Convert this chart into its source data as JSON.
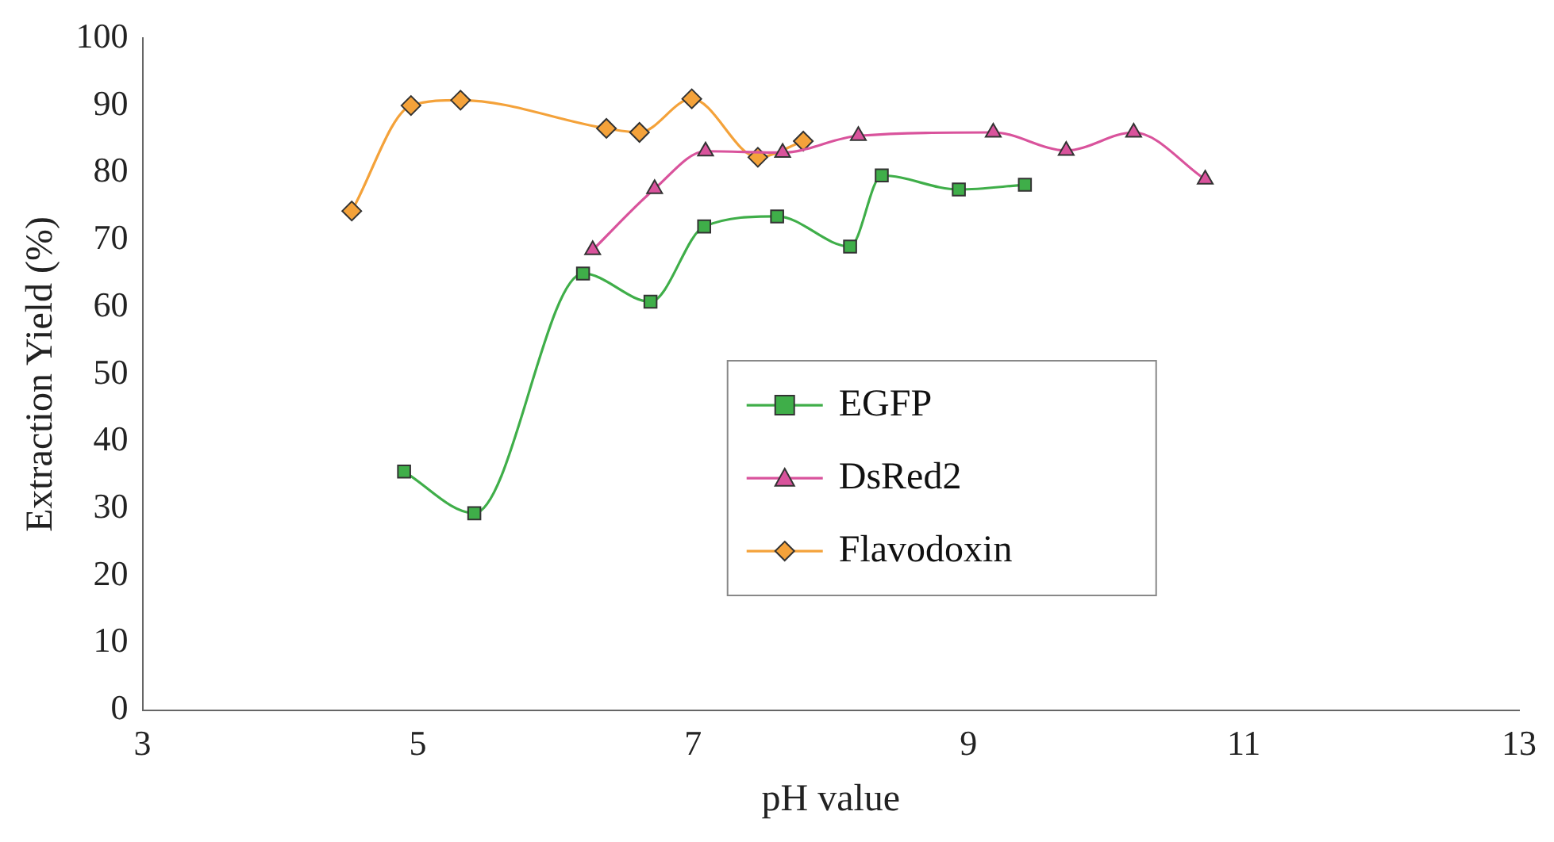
{
  "chart_data": {
    "type": "line",
    "xlabel": "pH value",
    "ylabel": "Extraction Yield (%)",
    "xlim": [
      3,
      13
    ],
    "xticks": [
      3,
      5,
      7,
      9,
      11,
      13
    ],
    "ylim": [
      0,
      100
    ],
    "yticks": [
      0,
      10,
      20,
      30,
      40,
      50,
      60,
      70,
      80,
      90,
      100
    ],
    "grid": false,
    "legend": "right",
    "series": [
      {
        "name": "EGFP",
        "color": "#3fae49",
        "marker": "square",
        "x": [
          4.9,
          5.41,
          6.2,
          6.69,
          7.08,
          7.61,
          8.14,
          8.37,
          8.93,
          9.41
        ],
        "values": [
          35.5,
          29.3,
          65,
          60.8,
          72,
          73.5,
          69,
          79.6,
          77.5,
          78.2
        ]
      },
      {
        "name": "DsRed2",
        "color": "#d9539c",
        "marker": "triangle",
        "x": [
          6.27,
          6.72,
          7.09,
          7.65,
          8.2,
          9.18,
          9.71,
          10.2,
          10.72
        ],
        "values": [
          68.5,
          77.6,
          83.2,
          83,
          85.5,
          86,
          83.3,
          86,
          79
        ]
      },
      {
        "name": "Flavodoxin",
        "color": "#f4a23a",
        "marker": "diamond",
        "x": [
          4.52,
          4.95,
          5.31,
          6.37,
          6.61,
          6.99,
          7.47,
          7.8
        ],
        "values": [
          74.3,
          90,
          90.8,
          86.6,
          86,
          91,
          82.3,
          84.7
        ]
      }
    ]
  }
}
